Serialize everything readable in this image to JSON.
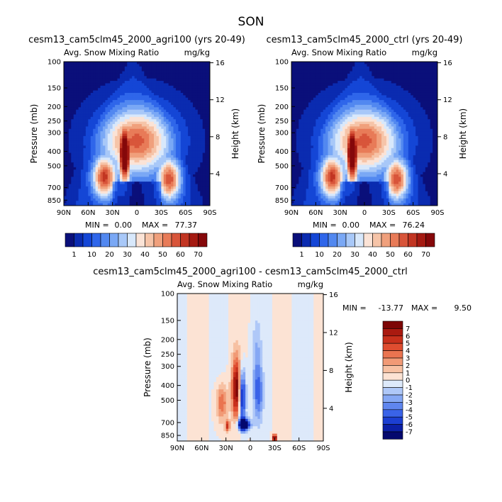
{
  "figure_title": "SON",
  "colors": {
    "absolute_scale": [
      "#0a0f7a",
      "#0a2bb0",
      "#1446d6",
      "#2f66ea",
      "#5288f0",
      "#7aa8f5",
      "#a8c8f8",
      "#d8e8fb",
      "#fbe3d6",
      "#f6c4a8",
      "#f0a07c",
      "#e87b58",
      "#d8553a",
      "#c23522",
      "#a51a12",
      "#85080a"
    ],
    "difference_scale": [
      "#05096e",
      "#0c20a6",
      "#1c3fd2",
      "#3a63e8",
      "#5f86ef",
      "#86a8f4",
      "#afc8f8",
      "#dde9fa",
      "#fce3d4",
      "#f7c1a3",
      "#f19a76",
      "#ea7450",
      "#df4d30",
      "#c8301c",
      "#aa1a10",
      "#7d0606"
    ]
  },
  "chart_data": [
    {
      "type": "heatmap",
      "title": "cesm13_cam5clm45_2000_agri100 (yrs 20-49)",
      "subtitle_left": "Avg. Snow Mixing Ratio",
      "subtitle_right": "mg/kg",
      "ylabel": "Pressure (mb)",
      "ylabel_right": "Height (km)",
      "x_ticks": [
        "90N",
        "60N",
        "30N",
        "0",
        "30S",
        "60S",
        "90S"
      ],
      "y_ticks": [
        "100",
        "150",
        "200",
        "250",
        "300",
        "400",
        "500",
        "700",
        "850"
      ],
      "y_ticks_right": [
        "16",
        "12",
        "8",
        "4"
      ],
      "stats": {
        "min_label": "MIN =",
        "min": "0.00",
        "max_label": "MAX =",
        "max": "77.37"
      },
      "colorbar_labels": [
        "1",
        "10",
        "20",
        "30",
        "40",
        "50",
        "60",
        "70"
      ],
      "peaks": [
        {
          "lat": 15,
          "p": 450,
          "value": 77.37
        },
        {
          "lat": 40,
          "p": 600,
          "value": 55
        },
        {
          "lat": -40,
          "p": 600,
          "value": 52
        }
      ]
    },
    {
      "type": "heatmap",
      "title": "cesm13_cam5clm45_2000_ctrl (yrs 20-49)",
      "subtitle_left": "Avg. Snow Mixing Ratio",
      "subtitle_right": "mg/kg",
      "ylabel": "Pressure (mb)",
      "ylabel_right": "Height (km)",
      "x_ticks": [
        "90N",
        "60N",
        "30N",
        "0",
        "30S",
        "60S",
        "90S"
      ],
      "y_ticks": [
        "100",
        "150",
        "200",
        "250",
        "300",
        "400",
        "500",
        "700",
        "850"
      ],
      "y_ticks_right": [
        "16",
        "12",
        "8",
        "4"
      ],
      "stats": {
        "min_label": "MIN =",
        "min": "0.00",
        "max_label": "MAX =",
        "max": "76.24"
      },
      "colorbar_labels": [
        "1",
        "10",
        "20",
        "30",
        "40",
        "50",
        "60",
        "70"
      ],
      "peaks": [
        {
          "lat": 15,
          "p": 450,
          "value": 76.24
        },
        {
          "lat": 40,
          "p": 600,
          "value": 55
        },
        {
          "lat": -40,
          "p": 600,
          "value": 52
        }
      ]
    },
    {
      "type": "heatmap",
      "title": "cesm13_cam5clm45_2000_agri100 - cesm13_cam5clm45_2000_ctrl",
      "subtitle_left": "Avg. Snow Mixing Ratio",
      "subtitle_right": "mg/kg",
      "ylabel": "Pressure (mb)",
      "ylabel_right": "Height (km)",
      "x_ticks": [
        "90N",
        "60N",
        "30N",
        "0",
        "30S",
        "60S",
        "90S"
      ],
      "y_ticks": [
        "100",
        "150",
        "200",
        "250",
        "300",
        "400",
        "500",
        "700",
        "850"
      ],
      "y_ticks_right": [
        "16",
        "12",
        "8",
        "4"
      ],
      "stats": {
        "min_label": "MIN =",
        "min": "-13.77",
        "max_label": "MAX =",
        "max": "9.50"
      },
      "colorbar_labels": [
        "7",
        "6",
        "5",
        "4",
        "3",
        "2",
        "1",
        "0",
        "-1",
        "-2",
        "-3",
        "-4",
        "-5",
        "-6",
        "-7"
      ],
      "features": [
        {
          "lat": 17,
          "p": 400,
          "value": 8
        },
        {
          "lat": 10,
          "p": 480,
          "value": -8
        },
        {
          "lat": -10,
          "p": 450,
          "value": -4
        },
        {
          "lat": 35,
          "p": 520,
          "value": 4
        },
        {
          "lat": 10,
          "p": 720,
          "value": -12
        },
        {
          "lat": -30,
          "p": 830,
          "value": 9
        }
      ]
    }
  ]
}
